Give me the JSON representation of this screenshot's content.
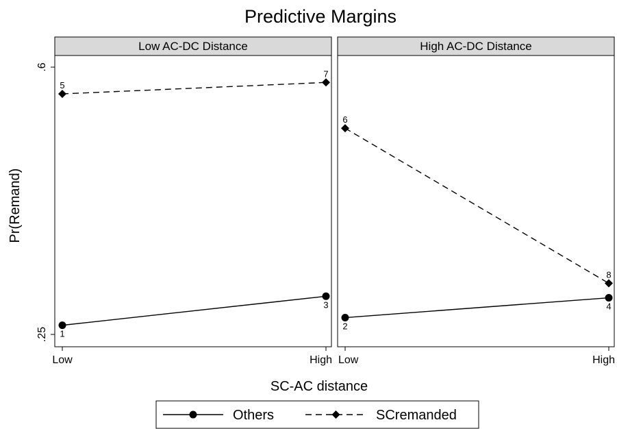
{
  "chart_data": {
    "type": "line",
    "title": "Predictive Margins",
    "ylabel": "Pr(Remand)",
    "xlabel": "SC-AC distance",
    "ylim": [
      0.25,
      0.6
    ],
    "yticks": [
      ".25",
      ".6"
    ],
    "xcategories": [
      "Low",
      "High"
    ],
    "grid": false,
    "legend_position": "bottom",
    "panels": [
      {
        "label": "Low AC-DC Distance",
        "series": [
          {
            "name": "Others",
            "values": [
              0.262,
              0.3
            ],
            "point_labels": [
              "1",
              "3"
            ]
          },
          {
            "name": "SCremanded",
            "values": [
              0.565,
              0.58
            ],
            "point_labels": [
              "5",
              "7"
            ]
          }
        ]
      },
      {
        "label": "High AC-DC Distance",
        "series": [
          {
            "name": "Others",
            "values": [
              0.272,
              0.298
            ],
            "point_labels": [
              "2",
              "4"
            ]
          },
          {
            "name": "SCremanded",
            "values": [
              0.52,
              0.317
            ],
            "point_labels": [
              "6",
              "8"
            ]
          }
        ]
      }
    ],
    "legend": [
      {
        "name": "Others",
        "line": "solid",
        "marker": "circle"
      },
      {
        "name": "SCremanded",
        "line": "dashed",
        "marker": "diamond"
      }
    ]
  },
  "colors": {
    "line": "#000000",
    "strip_fill": "#d9d9d9",
    "frame": "#000000"
  }
}
